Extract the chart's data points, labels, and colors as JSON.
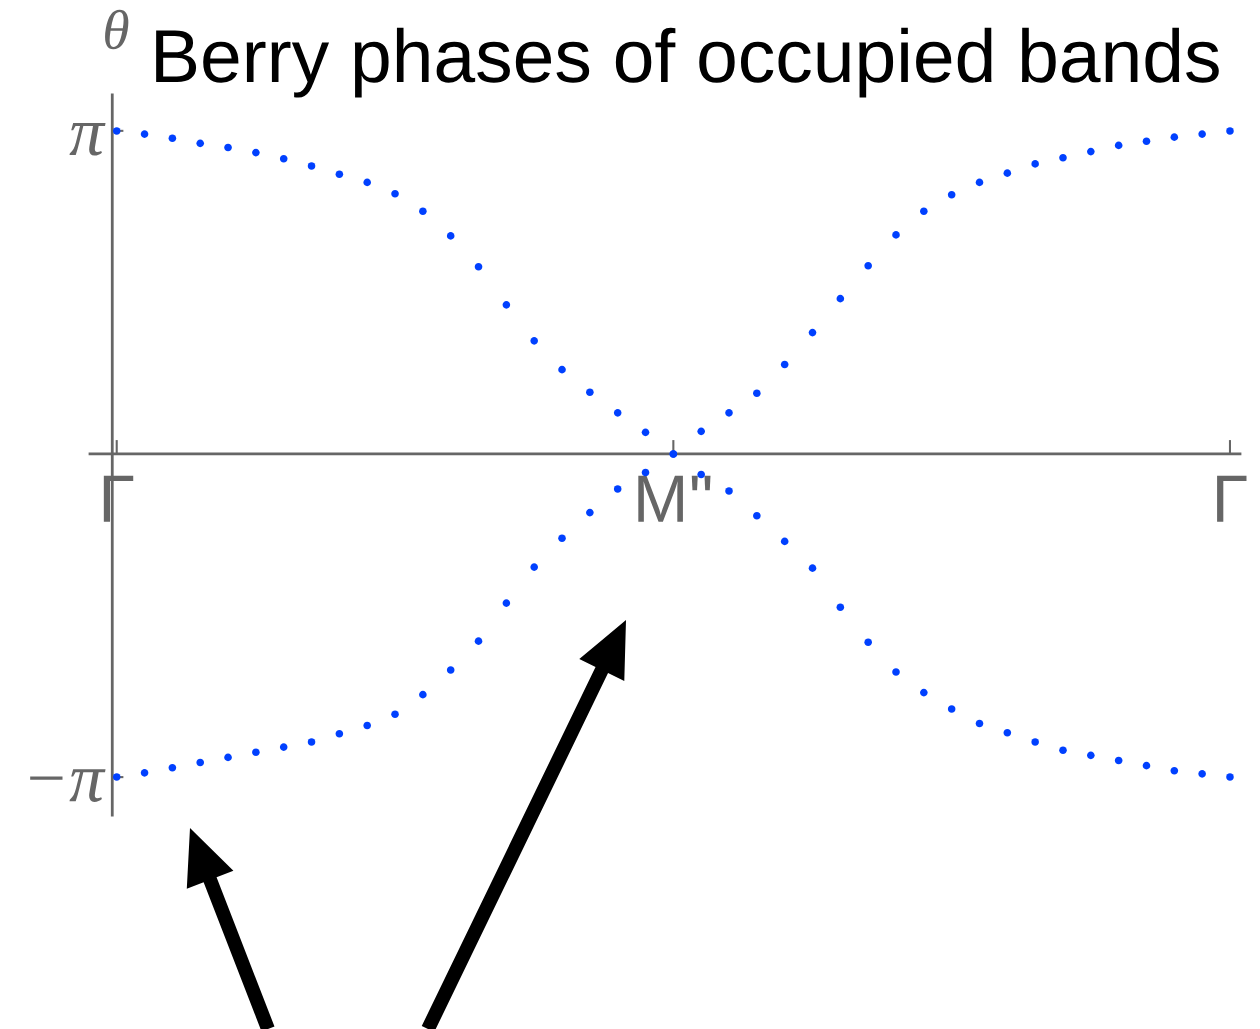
{
  "chart_data": {
    "type": "scatter",
    "title": "Berry phases of occupied bands",
    "ylabel": "θ",
    "marker": "circle",
    "categories": [
      "Γ",
      null,
      null,
      null,
      null,
      null,
      null,
      null,
      null,
      null,
      null,
      null,
      null,
      null,
      null,
      null,
      null,
      null,
      null,
      null,
      "M''",
      null,
      null,
      null,
      null,
      null,
      null,
      null,
      null,
      null,
      null,
      null,
      null,
      null,
      null,
      null,
      null,
      null,
      null,
      null,
      "Γ"
    ],
    "ylim": [
      -3.51,
      3.49
    ],
    "yticks": [
      {
        "value": -3.1416,
        "label": "−π"
      },
      {
        "value": 3.1416,
        "label": "π"
      }
    ],
    "series": [
      {
        "color": "#0040ff",
        "values": [
          3.14,
          3.11,
          3.07,
          3.02,
          2.98,
          2.93,
          2.87,
          2.8,
          2.72,
          2.64,
          2.53,
          2.36,
          2.12,
          1.82,
          1.45,
          1.1,
          0.82,
          0.6,
          0.4,
          0.21,
          0,
          -0.2,
          -0.36,
          -0.6,
          -0.85,
          -1.11,
          -1.49,
          -1.83,
          -2.12,
          -2.32,
          -2.48,
          -2.62,
          -2.71,
          -2.8,
          -2.88,
          -2.93,
          -2.98,
          -3.03,
          -3.08,
          -3.11,
          -3.14
        ]
      },
      {
        "color": "#0040ff",
        "values": [
          -3.14,
          -3.1,
          -3.05,
          -3.0,
          -2.95,
          -2.9,
          -2.85,
          -2.8,
          -2.72,
          -2.64,
          -2.53,
          -2.34,
          -2.1,
          -1.82,
          -1.45,
          -1.1,
          -0.82,
          -0.57,
          -0.34,
          -0.18,
          0,
          0.22,
          0.4,
          0.59,
          0.87,
          1.18,
          1.51,
          1.83,
          2.13,
          2.36,
          2.52,
          2.64,
          2.73,
          2.82,
          2.88,
          2.94,
          3.0,
          3.04,
          3.08,
          3.11,
          3.14
        ]
      }
    ]
  }
}
